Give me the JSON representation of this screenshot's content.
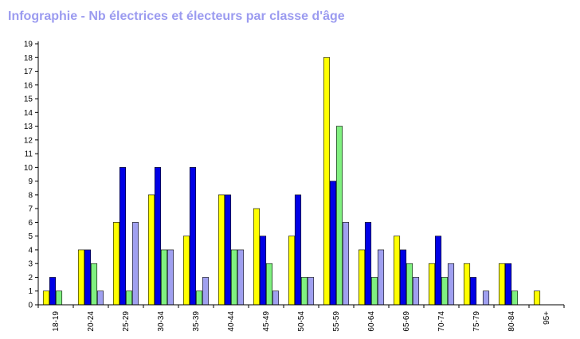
{
  "chart_data": {
    "type": "bar",
    "title": "Infographie - Nb électrices et électeurs par classe d'âge",
    "xlabel": "",
    "ylabel": "",
    "ylim": [
      0,
      19
    ],
    "yticks": [
      0,
      1,
      2,
      3,
      4,
      5,
      6,
      7,
      8,
      9,
      10,
      11,
      12,
      13,
      14,
      15,
      16,
      17,
      18,
      19
    ],
    "grid": false,
    "legend": "none",
    "categories": [
      "18-19",
      "20-24",
      "25-29",
      "30-34",
      "35-39",
      "40-44",
      "45-49",
      "50-54",
      "55-59",
      "60-64",
      "65-69",
      "70-74",
      "75-79",
      "80-84",
      "95+"
    ],
    "series": [
      {
        "color": "#ffff00",
        "values": [
          1,
          4,
          6,
          8,
          5,
          8,
          7,
          5,
          18,
          4,
          5,
          3,
          3,
          3,
          1
        ]
      },
      {
        "color": "#0000e6",
        "values": [
          2,
          4,
          10,
          10,
          10,
          8,
          5,
          8,
          9,
          6,
          4,
          5,
          2,
          3,
          0
        ]
      },
      {
        "color": "#80f080",
        "values": [
          1,
          3,
          1,
          4,
          1,
          4,
          3,
          2,
          13,
          2,
          3,
          2,
          0,
          1,
          0
        ]
      },
      {
        "color": "#a0a0f0",
        "values": [
          0,
          1,
          6,
          4,
          2,
          4,
          1,
          2,
          6,
          4,
          2,
          3,
          1,
          0,
          0
        ]
      }
    ]
  }
}
